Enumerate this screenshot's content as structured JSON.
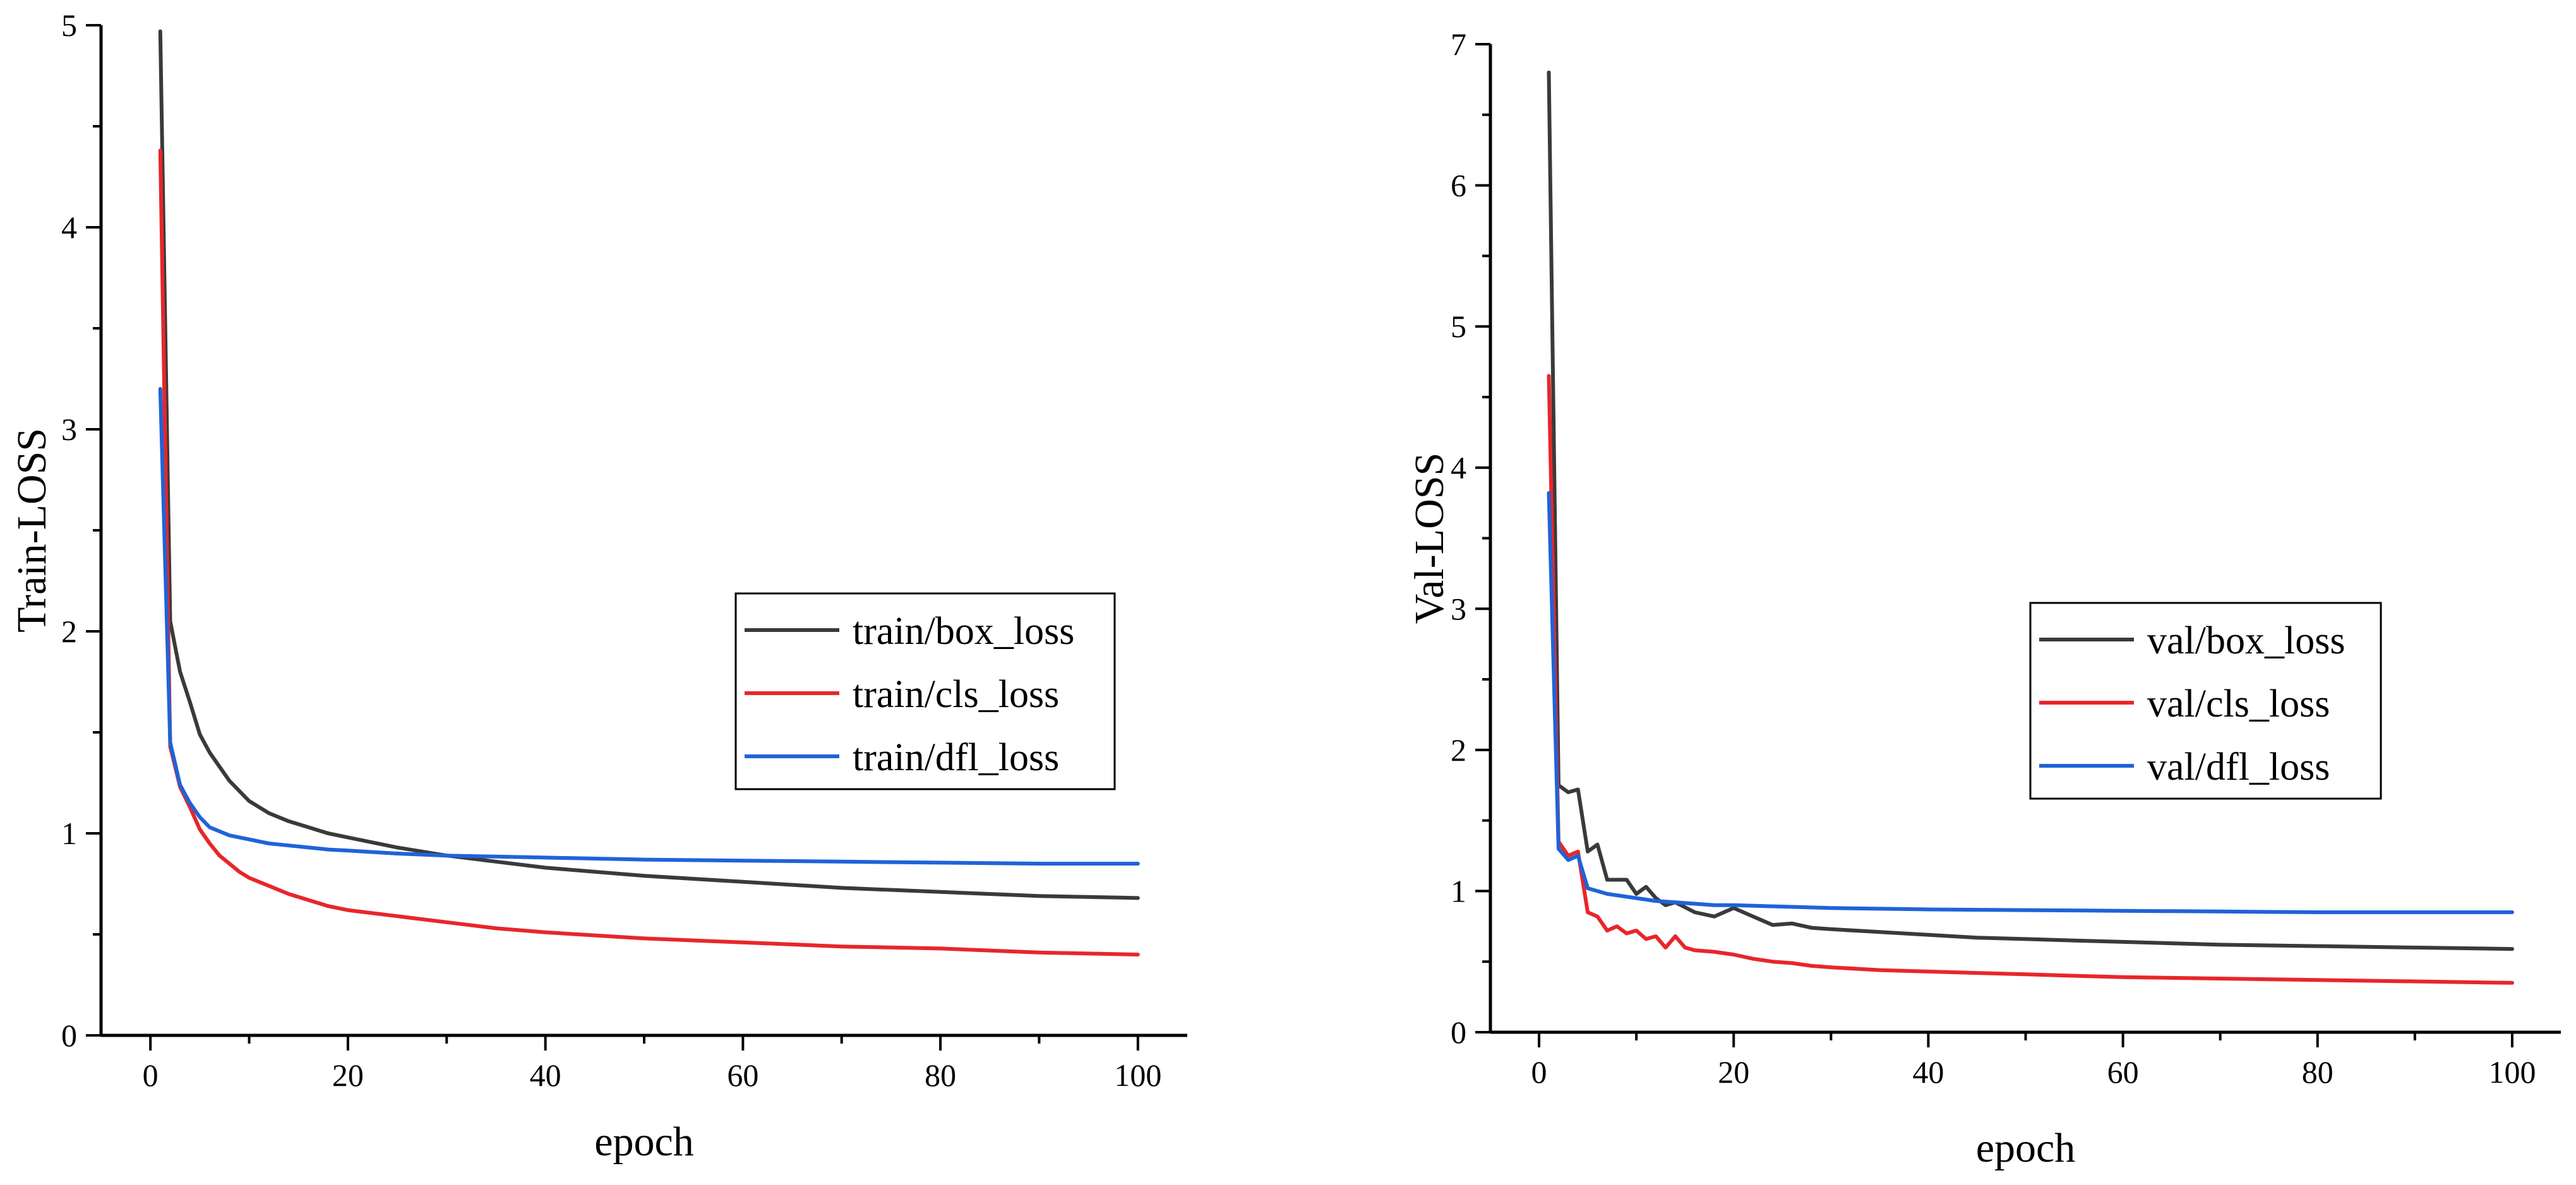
{
  "colors": {
    "box": "#3a3a3a",
    "cls": "#e8262b",
    "dfl": "#1f63d8"
  },
  "chart_data": [
    {
      "type": "line",
      "title": "",
      "xlabel": "epoch",
      "ylabel": "Train-LOSS",
      "xlim": [
        -5,
        105
      ],
      "ylim": [
        0,
        5
      ],
      "xticks": [
        0,
        20,
        40,
        60,
        80,
        100
      ],
      "yticks": [
        0,
        1,
        2,
        3,
        4,
        5
      ],
      "legend_position": "center-right",
      "series": [
        {
          "name": "train/box_loss",
          "color_key": "box",
          "x": [
            1,
            2,
            3,
            4,
            5,
            6,
            7,
            8,
            9,
            10,
            12,
            14,
            16,
            18,
            20,
            25,
            30,
            35,
            40,
            50,
            60,
            70,
            80,
            90,
            100
          ],
          "y": [
            4.97,
            2.05,
            1.8,
            1.65,
            1.49,
            1.4,
            1.33,
            1.26,
            1.21,
            1.16,
            1.1,
            1.06,
            1.03,
            1.0,
            0.98,
            0.93,
            0.89,
            0.86,
            0.83,
            0.79,
            0.76,
            0.73,
            0.71,
            0.69,
            0.68
          ]
        },
        {
          "name": "train/cls_loss",
          "color_key": "cls",
          "x": [
            1,
            2,
            3,
            4,
            5,
            6,
            7,
            8,
            9,
            10,
            12,
            14,
            16,
            18,
            20,
            25,
            30,
            35,
            40,
            50,
            60,
            70,
            80,
            90,
            100
          ],
          "y": [
            4.38,
            1.43,
            1.23,
            1.13,
            1.02,
            0.95,
            0.89,
            0.85,
            0.81,
            0.78,
            0.74,
            0.7,
            0.67,
            0.64,
            0.62,
            0.59,
            0.56,
            0.53,
            0.51,
            0.48,
            0.46,
            0.44,
            0.43,
            0.41,
            0.4
          ]
        },
        {
          "name": "train/dfl_loss",
          "color_key": "dfl",
          "x": [
            1,
            2,
            3,
            4,
            5,
            6,
            7,
            8,
            9,
            10,
            12,
            14,
            16,
            18,
            20,
            25,
            30,
            35,
            40,
            50,
            60,
            70,
            80,
            90,
            100
          ],
          "y": [
            3.2,
            1.45,
            1.24,
            1.15,
            1.08,
            1.03,
            1.01,
            0.99,
            0.98,
            0.97,
            0.95,
            0.94,
            0.93,
            0.92,
            0.915,
            0.9,
            0.89,
            0.885,
            0.88,
            0.87,
            0.865,
            0.86,
            0.855,
            0.85,
            0.85
          ]
        }
      ]
    },
    {
      "type": "line",
      "title": "",
      "xlabel": "epoch",
      "ylabel": "Val-LOSS",
      "xlim": [
        -5,
        105
      ],
      "ylim": [
        0,
        7
      ],
      "xticks": [
        0,
        20,
        40,
        60,
        80,
        100
      ],
      "yticks": [
        0,
        1,
        2,
        3,
        4,
        5,
        6,
        7
      ],
      "legend_position": "center-right",
      "series": [
        {
          "name": "val/box_loss",
          "color_key": "box",
          "x": [
            1,
            2,
            3,
            4,
            5,
            6,
            7,
            8,
            9,
            10,
            11,
            12,
            13,
            14,
            16,
            18,
            20,
            22,
            24,
            26,
            28,
            30,
            35,
            40,
            45,
            50,
            55,
            60,
            70,
            80,
            90,
            100
          ],
          "y": [
            6.8,
            1.75,
            1.7,
            1.72,
            1.28,
            1.33,
            1.08,
            1.08,
            1.08,
            0.98,
            1.03,
            0.95,
            0.9,
            0.92,
            0.85,
            0.82,
            0.88,
            0.82,
            0.76,
            0.77,
            0.74,
            0.73,
            0.71,
            0.69,
            0.67,
            0.66,
            0.65,
            0.64,
            0.62,
            0.61,
            0.6,
            0.59
          ]
        },
        {
          "name": "val/cls_loss",
          "color_key": "cls",
          "x": [
            1,
            2,
            3,
            4,
            5,
            6,
            7,
            8,
            9,
            10,
            11,
            12,
            13,
            14,
            15,
            16,
            18,
            20,
            22,
            24,
            26,
            28,
            30,
            35,
            40,
            45,
            50,
            55,
            60,
            70,
            80,
            90,
            100
          ],
          "y": [
            4.65,
            1.35,
            1.25,
            1.28,
            0.85,
            0.82,
            0.72,
            0.75,
            0.7,
            0.72,
            0.66,
            0.68,
            0.6,
            0.68,
            0.6,
            0.58,
            0.57,
            0.55,
            0.52,
            0.5,
            0.49,
            0.47,
            0.46,
            0.44,
            0.43,
            0.42,
            0.41,
            0.4,
            0.39,
            0.38,
            0.37,
            0.36,
            0.35
          ]
        },
        {
          "name": "val/dfl_loss",
          "color_key": "dfl",
          "x": [
            1,
            2,
            3,
            4,
            5,
            6,
            7,
            8,
            9,
            10,
            12,
            14,
            16,
            18,
            20,
            25,
            30,
            35,
            40,
            50,
            60,
            70,
            80,
            90,
            100
          ],
          "y": [
            3.82,
            1.3,
            1.22,
            1.25,
            1.02,
            1.0,
            0.98,
            0.97,
            0.96,
            0.95,
            0.93,
            0.92,
            0.91,
            0.9,
            0.9,
            0.89,
            0.88,
            0.875,
            0.87,
            0.865,
            0.86,
            0.855,
            0.85,
            0.85,
            0.85
          ]
        }
      ]
    }
  ]
}
